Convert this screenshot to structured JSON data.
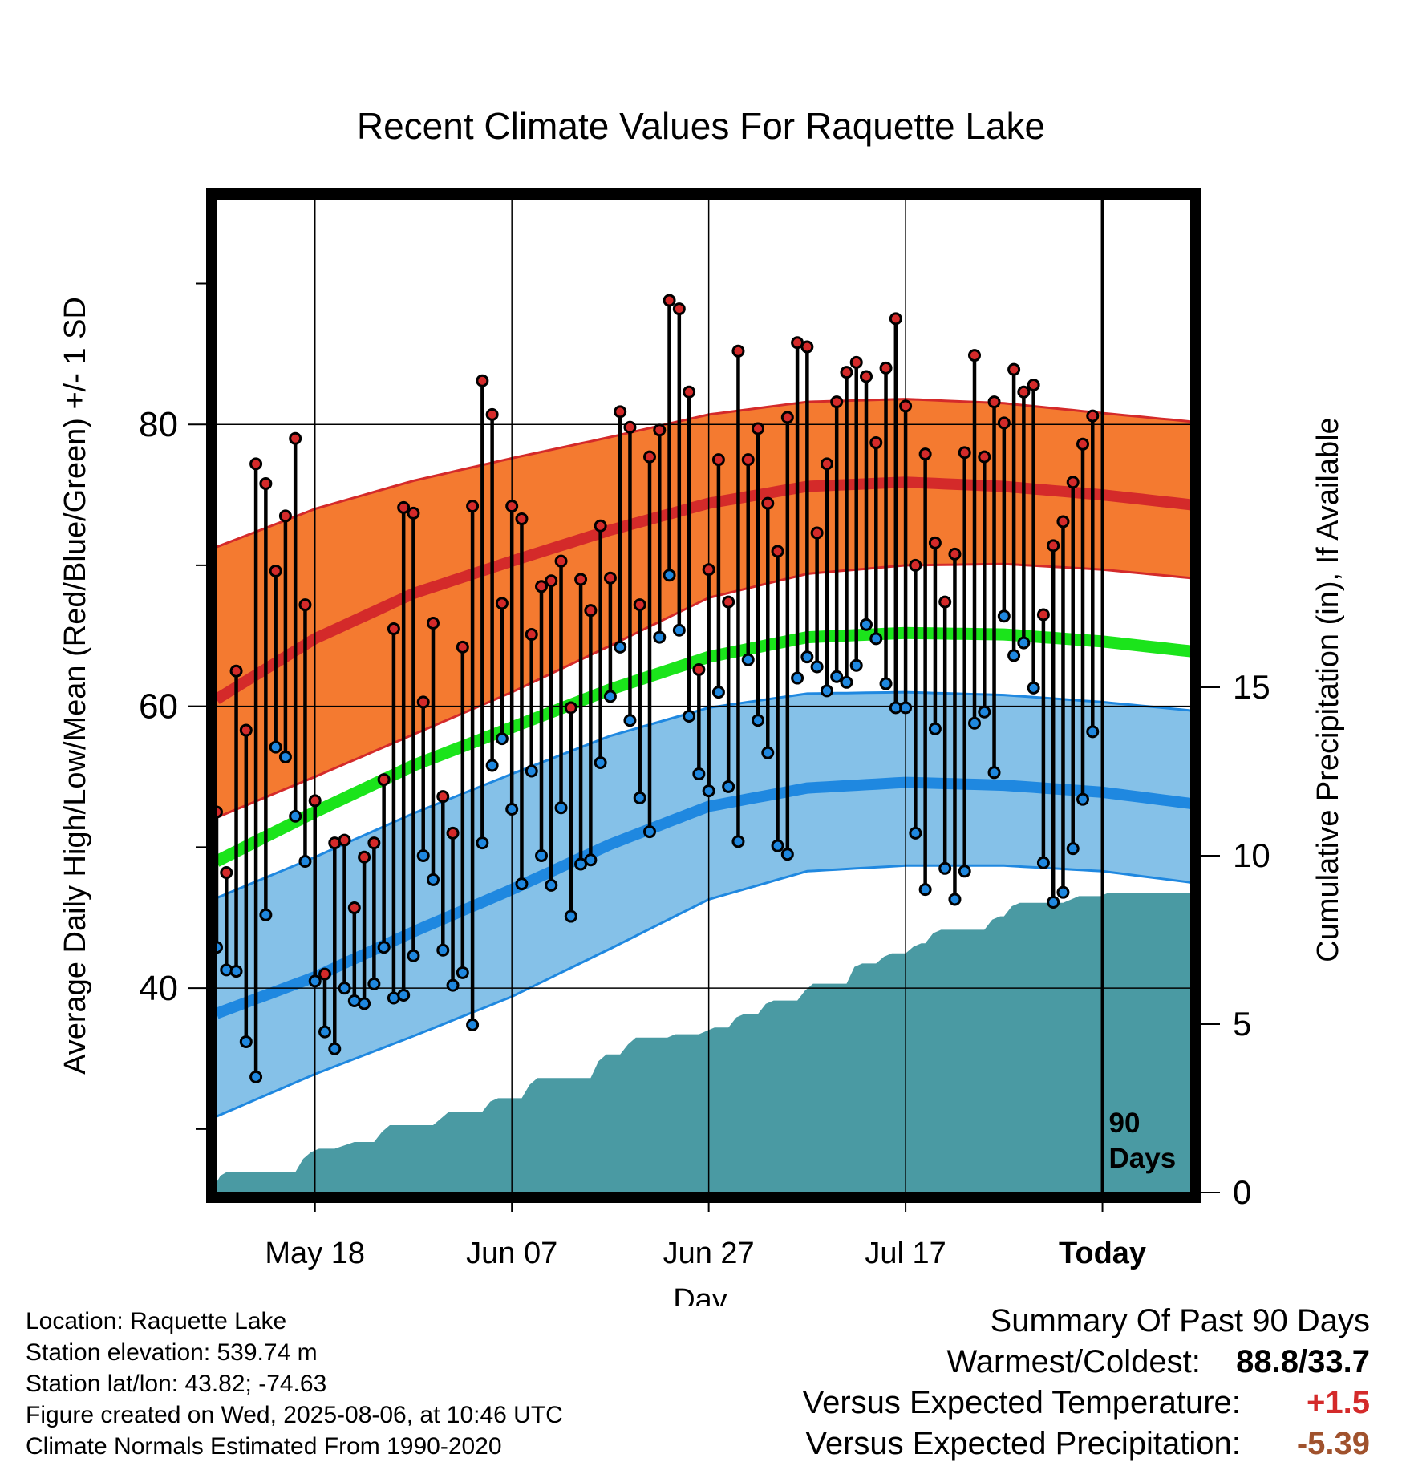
{
  "chart_data": {
    "type": "line",
    "title": "Recent Climate Values For Raquette Lake",
    "xlabel": "Day",
    "ylabel": "Average Daily High/Low/Mean (Red/Blue/Green) +/- 1 SD",
    "y2label": "Cumulative Precipitation (in), If Available",
    "ylim": [
      25.5,
      96
    ],
    "y2lim": [
      0,
      29.5
    ],
    "yticks": [
      40,
      60,
      80
    ],
    "yminor": [
      30,
      50,
      70,
      90
    ],
    "y2ticks": [
      0,
      5,
      10,
      15
    ],
    "xrange": [
      0,
      99
    ],
    "xticks": [
      {
        "label": "May 18",
        "day": 10
      },
      {
        "label": "Jun 07",
        "day": 30
      },
      {
        "label": "Jun 27",
        "day": 50
      },
      {
        "label": "Jul 17",
        "day": 70
      },
      {
        "label": "Today",
        "day": 90,
        "bold": true
      }
    ],
    "today_day": 90,
    "today_label": [
      "90",
      "Days"
    ],
    "grid": true,
    "normals": {
      "days": [
        0,
        10,
        20,
        30,
        40,
        50,
        60,
        70,
        80,
        90,
        99
      ],
      "high_mean": [
        60.5,
        64.8,
        68.0,
        70.3,
        72.5,
        74.4,
        75.6,
        75.9,
        75.6,
        75.0,
        74.3
      ],
      "high_upper": [
        71.3,
        74.0,
        76.0,
        77.6,
        79.1,
        80.7,
        81.6,
        81.8,
        81.5,
        80.8,
        80.2
      ],
      "high_lower": [
        52.1,
        55.0,
        58.0,
        61.0,
        64.3,
        67.7,
        69.4,
        70.0,
        70.1,
        69.7,
        69.1
      ],
      "mean": [
        49.0,
        52.5,
        55.8,
        58.5,
        61.2,
        63.5,
        64.9,
        65.2,
        65.1,
        64.6,
        63.9
      ],
      "low_mean": [
        38.2,
        40.8,
        44.0,
        47.0,
        50.2,
        52.9,
        54.2,
        54.6,
        54.4,
        53.9,
        53.1
      ],
      "low_upper": [
        46.4,
        49.3,
        52.4,
        55.2,
        57.9,
        59.9,
        60.9,
        61.0,
        60.8,
        60.3,
        59.7
      ],
      "low_lower": [
        30.9,
        33.9,
        36.6,
        39.4,
        42.8,
        46.3,
        48.3,
        48.7,
        48.7,
        48.3,
        47.5
      ]
    },
    "series": [
      {
        "name": "High",
        "color": "#d42a2a",
        "values": [
          52.5,
          48.2,
          62.5,
          58.3,
          77.2,
          75.8,
          69.6,
          73.5,
          79.0,
          67.2,
          53.3,
          41.0,
          50.3,
          50.5,
          45.7,
          49.3,
          50.3,
          54.8,
          65.5,
          74.1,
          73.7,
          60.3,
          65.9,
          53.6,
          51.0,
          64.2,
          74.2,
          83.1,
          80.7,
          67.3,
          74.2,
          73.3,
          65.1,
          68.5,
          68.9,
          70.3,
          59.9,
          69.0,
          66.8,
          72.8,
          69.1,
          80.9,
          79.8,
          67.2,
          77.7,
          79.6,
          88.8,
          88.2,
          82.3,
          62.6,
          69.7,
          77.5,
          67.4,
          85.2,
          77.5,
          79.7,
          74.4,
          71.0,
          80.5,
          85.8,
          85.5,
          72.3,
          77.2,
          81.6,
          83.7,
          84.4,
          83.4,
          78.7,
          84.0,
          87.5,
          81.3,
          70.0,
          77.9,
          71.6,
          67.4,
          70.8,
          78.0,
          84.9,
          77.7,
          81.6,
          80.1,
          83.9,
          82.3,
          82.8,
          66.5,
          71.4,
          73.1,
          75.9,
          78.6,
          80.6
        ]
      },
      {
        "name": "Low",
        "color": "#1f88e0",
        "values": [
          42.9,
          41.3,
          41.2,
          36.2,
          33.7,
          45.2,
          57.1,
          56.4,
          52.2,
          49.0,
          40.5,
          36.9,
          35.7,
          40.0,
          39.1,
          38.9,
          40.3,
          42.9,
          39.3,
          39.5,
          42.3,
          49.4,
          47.7,
          42.7,
          40.2,
          41.1,
          37.4,
          50.3,
          55.8,
          57.7,
          52.7,
          47.4,
          55.4,
          49.4,
          47.3,
          52.8,
          45.1,
          48.8,
          49.1,
          56.0,
          60.7,
          64.2,
          59.0,
          53.5,
          51.1,
          64.9,
          69.3,
          65.4,
          59.3,
          55.2,
          54.0,
          61.0,
          54.3,
          50.4,
          63.3,
          59.0,
          56.7,
          50.1,
          49.5,
          62.0,
          63.5,
          62.8,
          61.1,
          62.1,
          61.7,
          62.9,
          65.8,
          64.8,
          61.6,
          59.9,
          59.9,
          51.0,
          47.0,
          58.4,
          48.5,
          46.3,
          48.3,
          58.8,
          59.6,
          55.3,
          66.4,
          63.6,
          64.5,
          61.3,
          48.9,
          46.1,
          46.8,
          49.9,
          53.4,
          58.2
        ]
      },
      {
        "name": "Cumulative Precipitation",
        "color": "#4a9aa3",
        "days": [
          0,
          0.4,
          1.0,
          8.0,
          8.8,
          9.6,
          10.4,
          12.0,
          14.0,
          16.0,
          16.8,
          17.6,
          22.0,
          22.8,
          23.6,
          27.0,
          27.8,
          28.6,
          31.0,
          31.8,
          32.6,
          38.0,
          38.8,
          39.6,
          41.0,
          41.8,
          42.6,
          45.0,
          45.8,
          46.6,
          49.0,
          49.8,
          50.6,
          52.0,
          52.8,
          53.6,
          55.0,
          55.8,
          56.6,
          59.0,
          59.8,
          60.6,
          64.0,
          64.8,
          65.6,
          67.0,
          67.8,
          68.6,
          70.0,
          70.8,
          71.6,
          72.0,
          72.8,
          73.6,
          78.0,
          78.8,
          79.6,
          80.0,
          80.8,
          81.6,
          86.0,
          86.8,
          87.6,
          89.0,
          89.8,
          90.6,
          99.0
        ],
        "values": [
          0.3,
          0.5,
          0.6,
          0.6,
          1.0,
          1.2,
          1.3,
          1.3,
          1.5,
          1.5,
          1.8,
          2.0,
          2.0,
          2.2,
          2.4,
          2.4,
          2.7,
          2.8,
          2.8,
          3.2,
          3.4,
          3.4,
          3.9,
          4.1,
          4.1,
          4.4,
          4.6,
          4.6,
          4.6,
          4.7,
          4.7,
          4.8,
          4.9,
          4.9,
          5.2,
          5.3,
          5.3,
          5.6,
          5.7,
          5.7,
          6.0,
          6.2,
          6.2,
          6.7,
          6.8,
          6.8,
          7.0,
          7.1,
          7.1,
          7.3,
          7.4,
          7.4,
          7.7,
          7.8,
          7.8,
          8.1,
          8.2,
          8.2,
          8.5,
          8.6,
          8.6,
          8.7,
          8.8,
          8.8,
          8.8,
          8.9,
          8.9
        ]
      }
    ],
    "colors": {
      "high_band": "#f47a30",
      "high_band_edge": "#d42a2a",
      "high_mean": "#d42a2a",
      "low_band": "#85c1e8",
      "low_band_edge": "#1f88e0",
      "low_mean": "#1f88e0",
      "mean": "#1be41b",
      "precip": "#4a9aa3"
    }
  },
  "footer_left": [
    "Location: Raquette Lake",
    "Station elevation: 539.74 m",
    "Station lat/lon: 43.82; -74.63",
    "Figure created on Wed, 2025-08-06, at 10:46 UTC",
    "Climate Normals Estimated From 1990-2020"
  ],
  "summary": {
    "heading": "Summary Of Past 90 Days",
    "warm_cold_label": "Warmest/Coldest:",
    "warm_cold_value": "88.8/33.7",
    "temp_label": "Versus Expected Temperature:",
    "temp_value": "+1.5",
    "temp_color": "#d42a2a",
    "precip_label": "Versus Expected Precipitation:",
    "precip_value": "-5.39",
    "precip_color": "#a0522d"
  }
}
